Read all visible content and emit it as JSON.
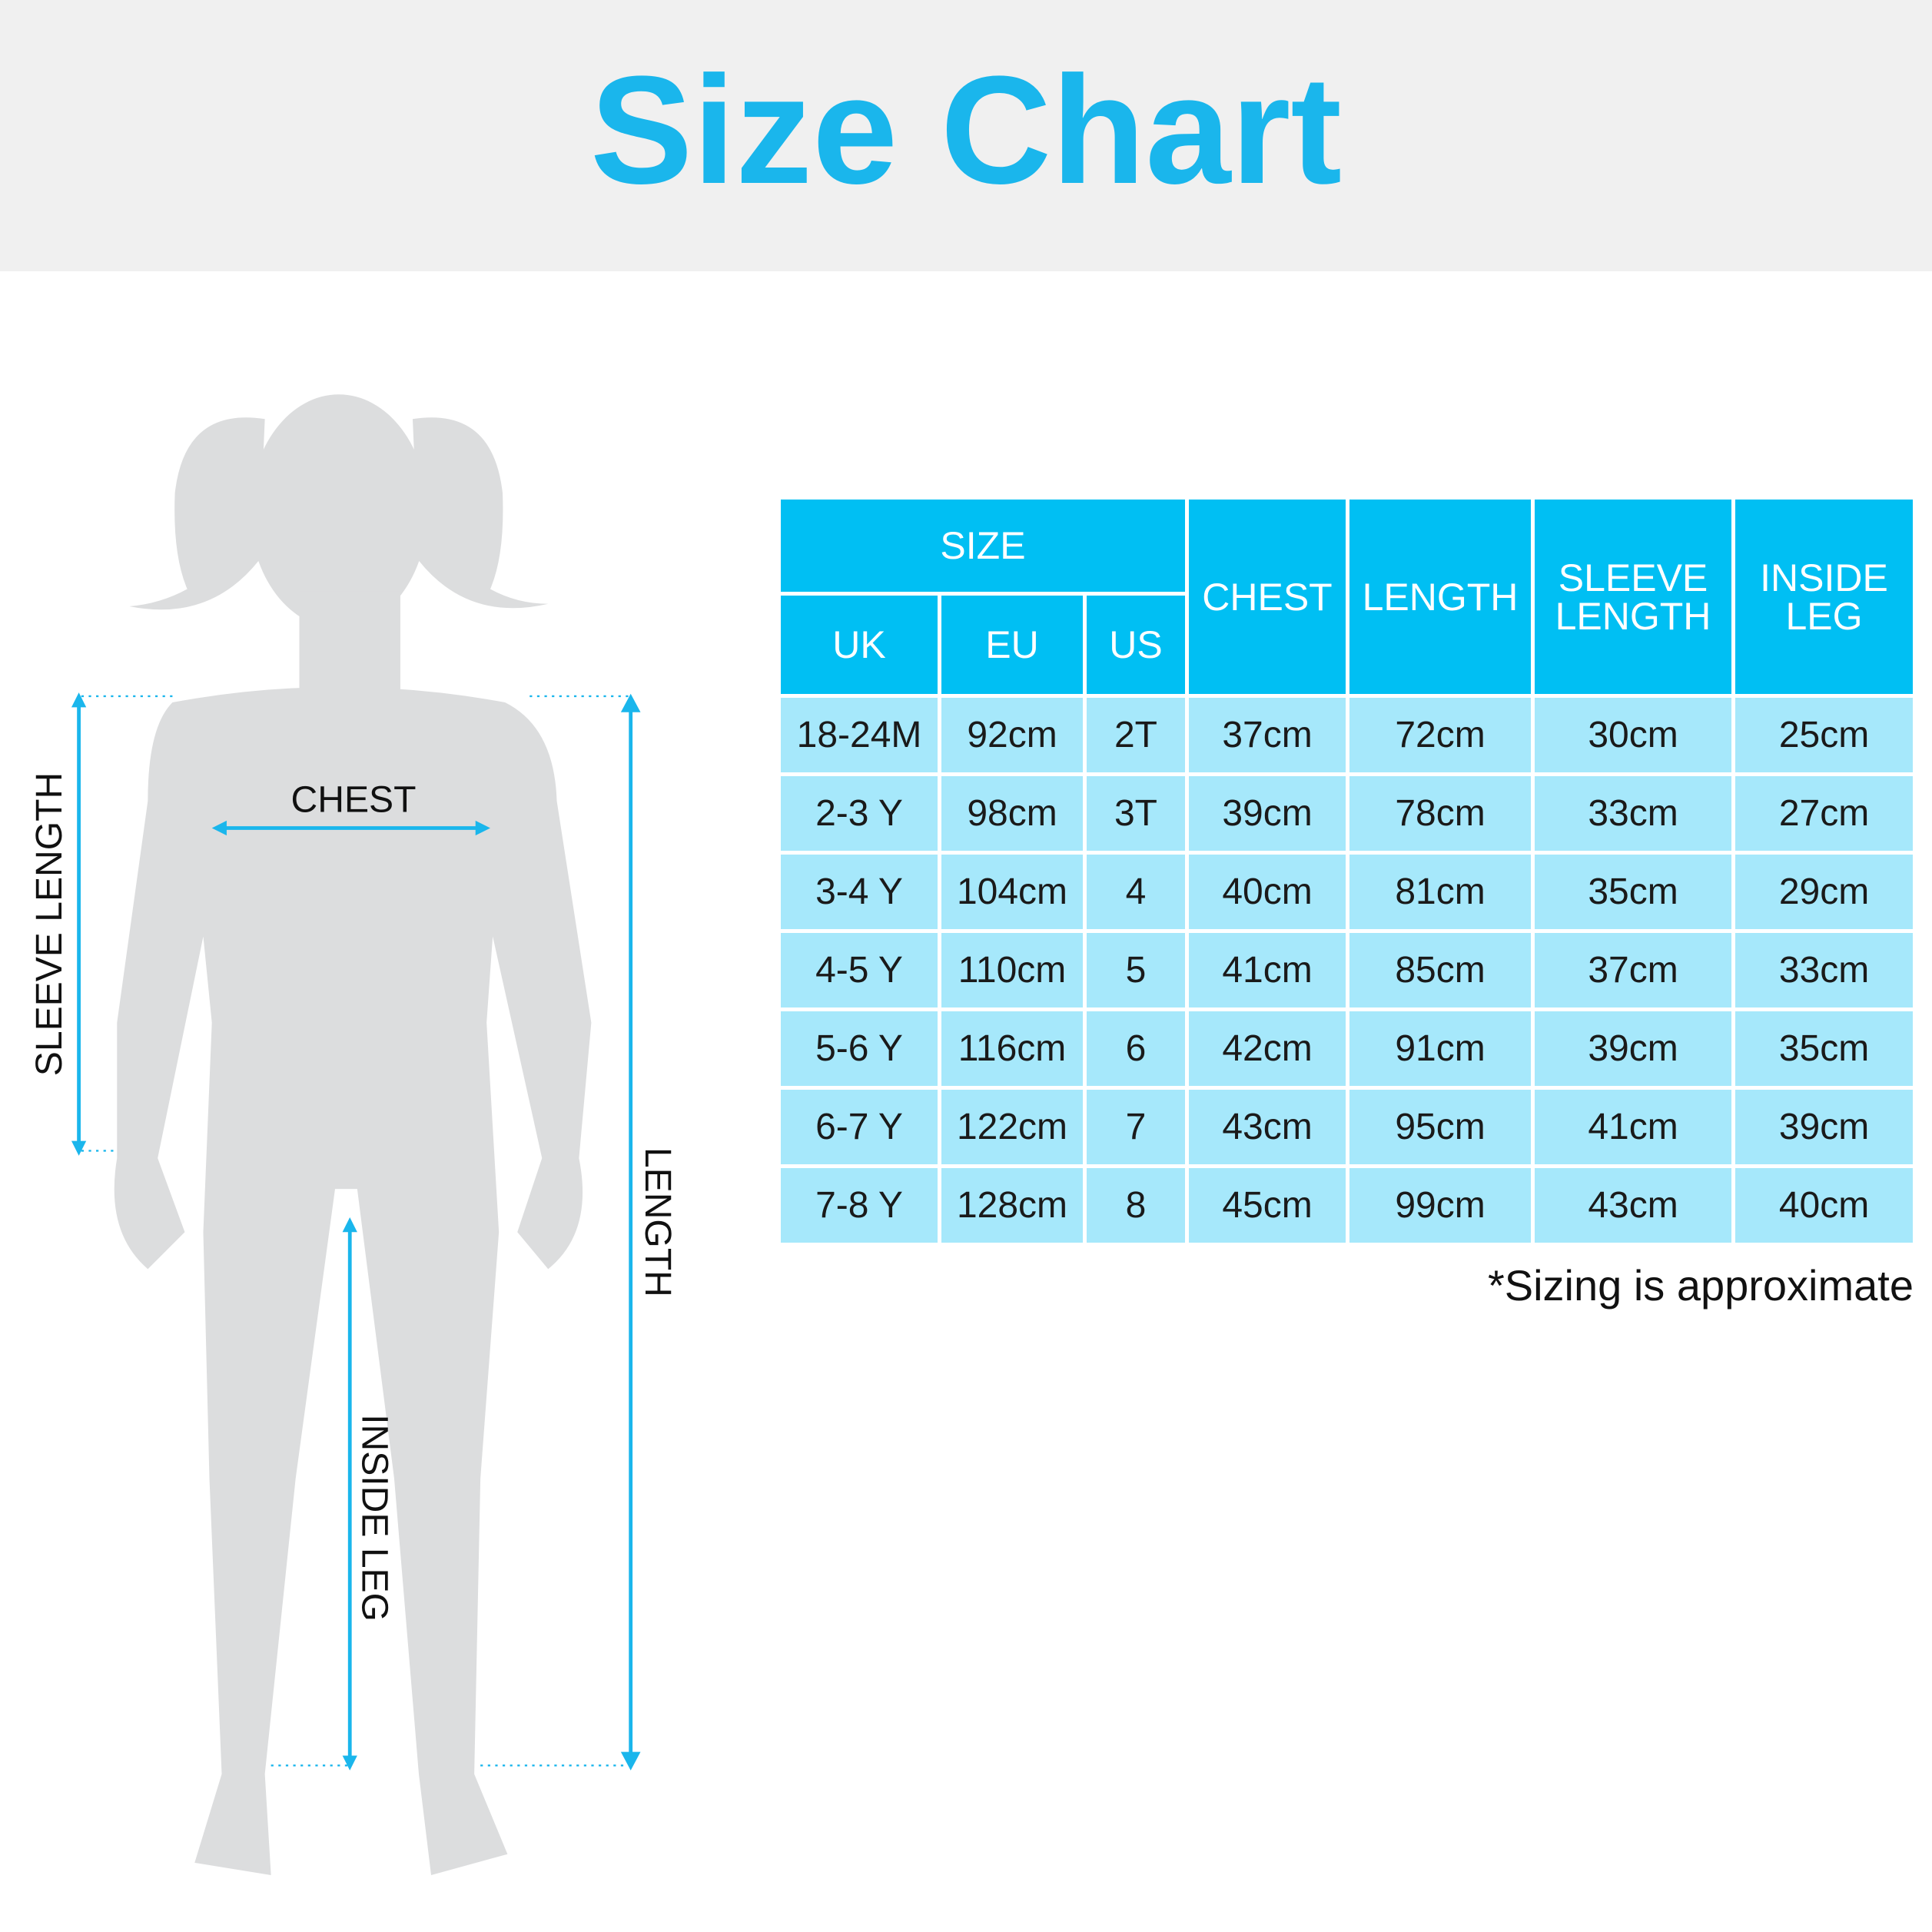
{
  "header": {
    "title": "Size Chart"
  },
  "figure": {
    "sleeve_length": "SLEEVE LENGTH",
    "chest": "CHEST",
    "length": "LENGTH",
    "inside_leg": "INSIDE LEG"
  },
  "table": {
    "group_header": "SIZE",
    "sub_headers": [
      "UK",
      "EU",
      "US"
    ],
    "headers": [
      "CHEST",
      "LENGTH",
      "SLEEVE LENGTH",
      "INSIDE LEG"
    ],
    "rows": [
      [
        "18-24M",
        "92cm",
        "2T",
        "37cm",
        "72cm",
        "30cm",
        "25cm"
      ],
      [
        "2-3 Y",
        "98cm",
        "3T",
        "39cm",
        "78cm",
        "33cm",
        "27cm"
      ],
      [
        "3-4 Y",
        "104cm",
        "4",
        "40cm",
        "81cm",
        "35cm",
        "29cm"
      ],
      [
        "4-5 Y",
        "110cm",
        "5",
        "41cm",
        "85cm",
        "37cm",
        "33cm"
      ],
      [
        "5-6 Y",
        "116cm",
        "6",
        "42cm",
        "91cm",
        "39cm",
        "35cm"
      ],
      [
        "6-7 Y",
        "122cm",
        "7",
        "43cm",
        "95cm",
        "41cm",
        "39cm"
      ],
      [
        "7-8 Y",
        "128cm",
        "8",
        "45cm",
        "99cm",
        "43cm",
        "40cm"
      ]
    ]
  },
  "footnote": "*Sizing is approximate"
}
